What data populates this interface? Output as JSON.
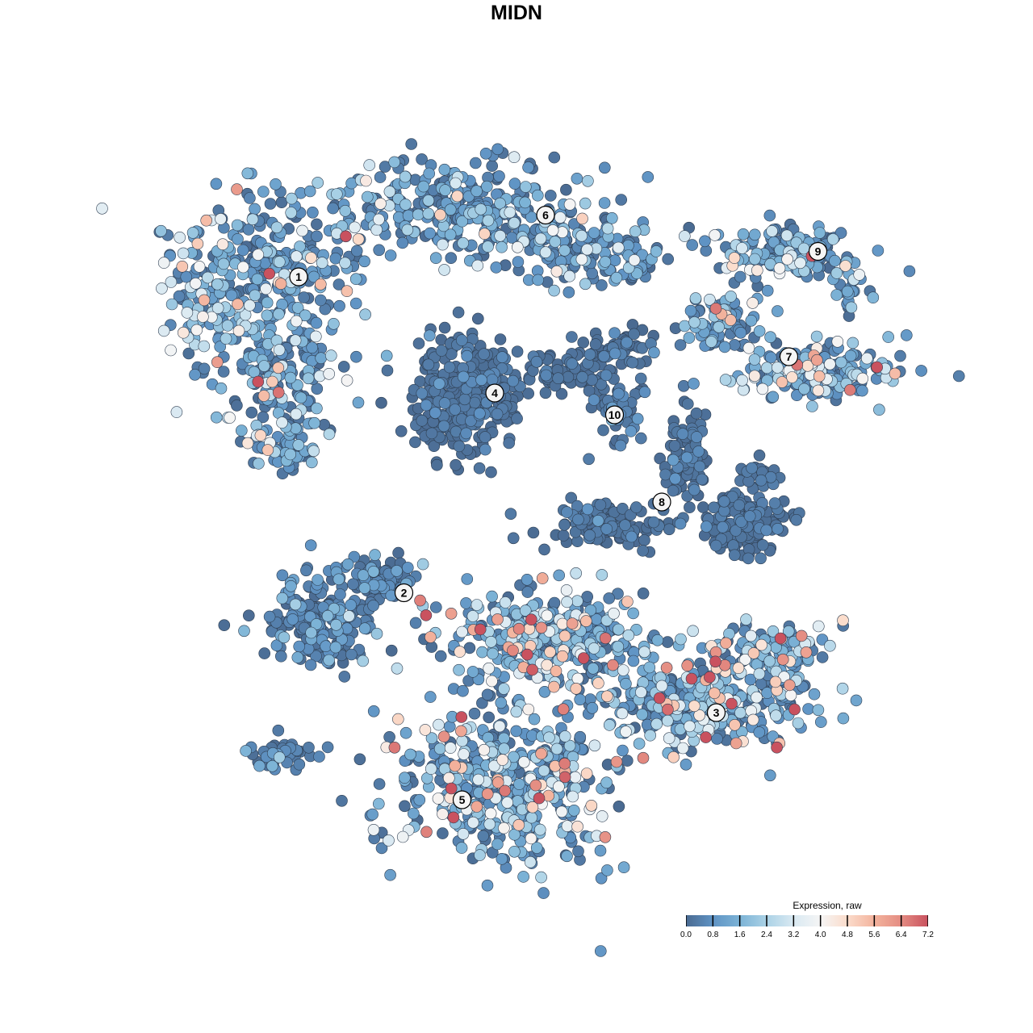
{
  "chart_data": {
    "type": "scatter",
    "title": "MIDN",
    "xlabel": "",
    "ylabel": "",
    "grid": false,
    "legend": {
      "title": "Expression, raw",
      "placement": "bottom-right",
      "range": [
        0.0,
        7.2
      ],
      "ticks": [
        "0.0",
        "0.8",
        "1.6",
        "2.4",
        "3.2",
        "4.0",
        "4.8",
        "5.6",
        "6.4",
        "7.2"
      ],
      "colors": [
        "#4a6a91",
        "#5f93c4",
        "#7cb3d6",
        "#abd2e6",
        "#d9e9f2",
        "#f5f5f5",
        "#fbdccb",
        "#f3b39d",
        "#e48c82",
        "#c9525f"
      ]
    },
    "point_style": {
      "fill_by": "expression",
      "stroke": "#2f3f52"
    },
    "clusters": [
      {
        "label": "1",
        "center": [
          -6.0,
          6.6
        ],
        "mean_expression": 1.6
      },
      {
        "label": "2",
        "center": [
          -3.1,
          -2.1
        ],
        "mean_expression": 0.6
      },
      {
        "label": "3",
        "center": [
          5.5,
          -5.4
        ],
        "mean_expression": 2.1
      },
      {
        "label": "4",
        "center": [
          -0.6,
          3.4
        ],
        "mean_expression": 0.2
      },
      {
        "label": "5",
        "center": [
          -1.5,
          -7.8
        ],
        "mean_expression": 2.0
      },
      {
        "label": "6",
        "center": [
          0.8,
          8.3
        ],
        "mean_expression": 1.3
      },
      {
        "label": "7",
        "center": [
          7.5,
          4.4
        ],
        "mean_expression": 1.8
      },
      {
        "label": "8",
        "center": [
          4.0,
          0.4
        ],
        "mean_expression": 0.2
      },
      {
        "label": "9",
        "center": [
          8.3,
          7.3
        ],
        "mean_expression": 1.3
      },
      {
        "label": "10",
        "center": [
          2.7,
          2.8
        ],
        "mean_expression": 0.3
      }
    ]
  }
}
